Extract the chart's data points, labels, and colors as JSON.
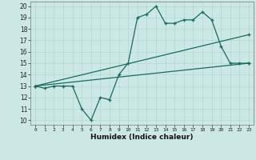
{
  "xlabel": "Humidex (Indice chaleur)",
  "bg_color": "#cce8e4",
  "grid_color": "#b0d8d0",
  "line_color": "#1a6b5a",
  "x_ticks": [
    0,
    1,
    2,
    3,
    4,
    5,
    6,
    7,
    8,
    9,
    10,
    11,
    12,
    13,
    14,
    15,
    16,
    17,
    18,
    19,
    20,
    21,
    22,
    23
  ],
  "y_ticks": [
    10,
    11,
    12,
    13,
    14,
    15,
    16,
    17,
    18,
    19,
    20
  ],
  "ylim": [
    9.6,
    20.4
  ],
  "xlim": [
    -0.5,
    23.5
  ],
  "line1_x": [
    0,
    1,
    2,
    3,
    4,
    5,
    6,
    7,
    8,
    9,
    10,
    11,
    12,
    13,
    14,
    15,
    16,
    17,
    18,
    19,
    20,
    21,
    22,
    23
  ],
  "line1_y": [
    13,
    12.8,
    13,
    13,
    13,
    11,
    10,
    12,
    11.8,
    14,
    15,
    19,
    19.3,
    20,
    18.5,
    18.5,
    18.8,
    18.8,
    19.5,
    18.8,
    16.5,
    15,
    15,
    15
  ],
  "line2_x": [
    0,
    23
  ],
  "line2_y": [
    13,
    17.5
  ],
  "line3_x": [
    0,
    23
  ],
  "line3_y": [
    13,
    15.0
  ]
}
